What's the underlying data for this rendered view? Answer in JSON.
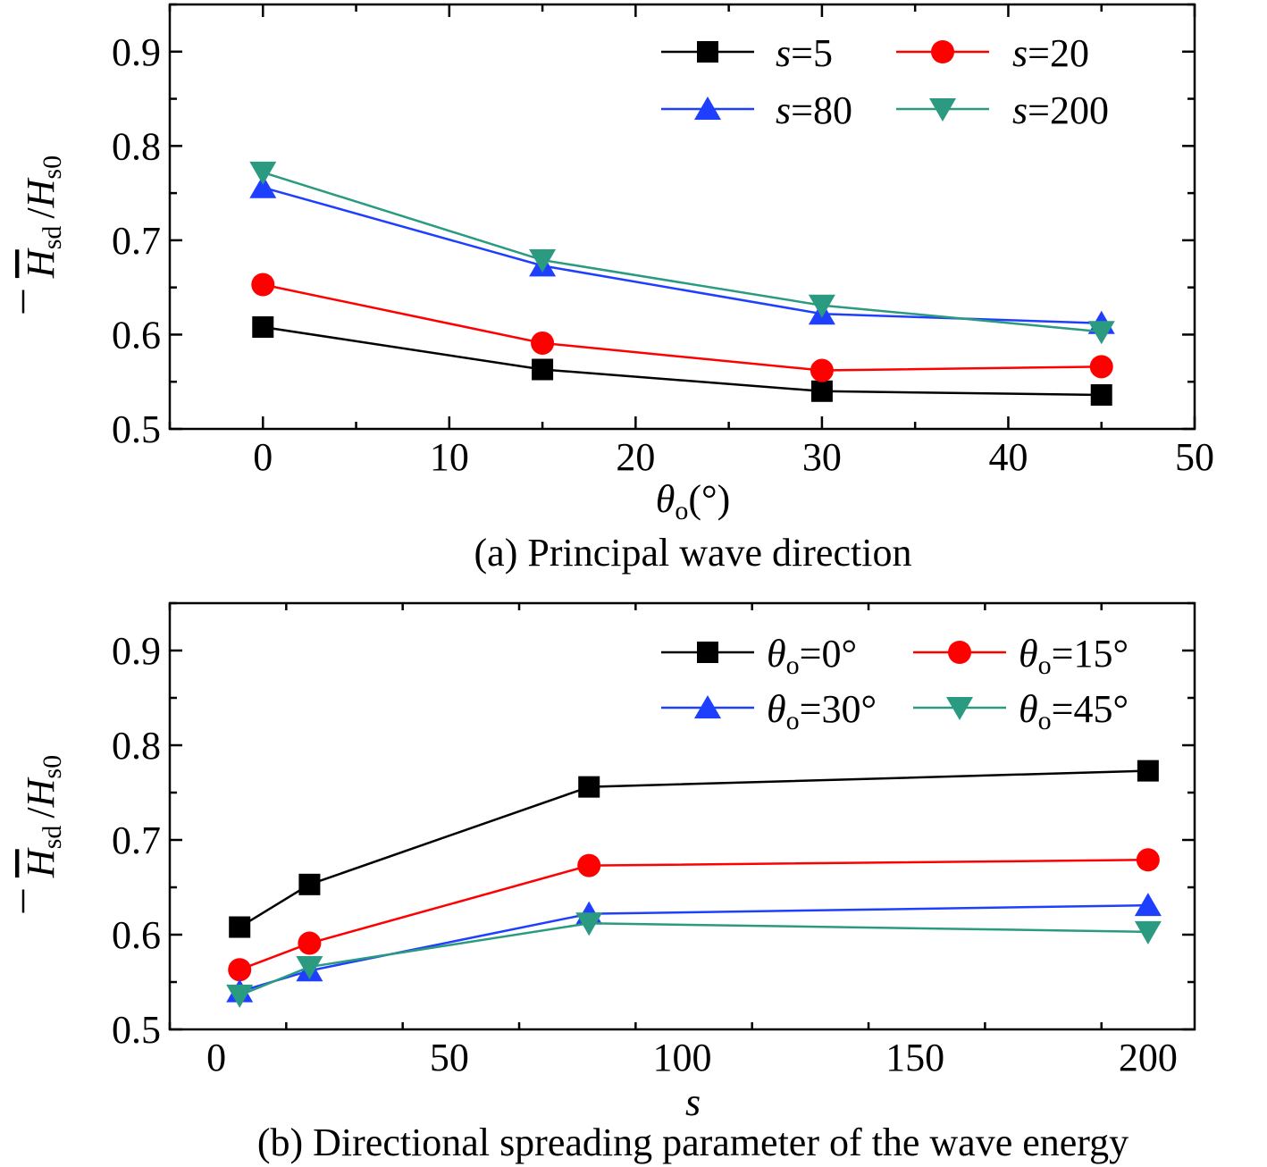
{
  "chart_data": [
    {
      "type": "line",
      "caption": "(a) Principal wave direction",
      "xlabel": {
        "symbol": "θ",
        "subscript": "o",
        "unit": "(°)"
      },
      "ylabel": {
        "symbol_a": "H",
        "subscript_a": "sd",
        "slash": "/",
        "symbol_b": "H",
        "subscript_b": "s0"
      },
      "xlim": [
        -5,
        50
      ],
      "ylim": [
        0.5,
        0.95
      ],
      "xticks": [
        0,
        10,
        20,
        30,
        40,
        50
      ],
      "yticks": [
        0.5,
        0.6,
        0.7,
        0.8,
        0.9
      ],
      "x": [
        0,
        15,
        30,
        45
      ],
      "legend_position": "top-right",
      "series": [
        {
          "name": "s=5",
          "prefix": "s",
          "suffix": "=5",
          "color": "#000000",
          "marker": "square",
          "values": [
            0.608,
            0.563,
            0.54,
            0.536
          ]
        },
        {
          "name": "s=20",
          "prefix": "s",
          "suffix": "=20",
          "color": "#ff0000",
          "marker": "circle",
          "values": [
            0.653,
            0.591,
            0.562,
            0.566
          ]
        },
        {
          "name": "s=80",
          "prefix": "s",
          "suffix": "=80",
          "color": "#1f3fff",
          "marker": "triangle-up",
          "values": [
            0.756,
            0.673,
            0.622,
            0.612
          ]
        },
        {
          "name": "s=200",
          "prefix": "s",
          "suffix": "=200",
          "color": "#2a9a80",
          "marker": "triangle-down",
          "values": [
            0.772,
            0.679,
            0.631,
            0.603
          ]
        }
      ]
    },
    {
      "type": "line",
      "caption": "(b) Directional spreading parameter of the wave energy",
      "xlabel": {
        "symbol": "s",
        "subscript": "",
        "unit": ""
      },
      "ylabel": {
        "symbol_a": "H",
        "subscript_a": "sd",
        "slash": "/",
        "symbol_b": "H",
        "subscript_b": "s0"
      },
      "xlim": [
        -10,
        210
      ],
      "ylim": [
        0.5,
        0.95
      ],
      "xticks": [
        0,
        50,
        100,
        150,
        200
      ],
      "yticks": [
        0.5,
        0.6,
        0.7,
        0.8,
        0.9
      ],
      "x": [
        5,
        20,
        80,
        200
      ],
      "legend_position": "top-right",
      "series": [
        {
          "name": "θo=0°",
          "prefix": "θ",
          "sub": "o",
          "suffix": "=0°",
          "color": "#000000",
          "marker": "square",
          "values": [
            0.608,
            0.653,
            0.756,
            0.773
          ]
        },
        {
          "name": "θo=15°",
          "prefix": "θ",
          "sub": "o",
          "suffix": "=15°",
          "color": "#ff0000",
          "marker": "circle",
          "values": [
            0.563,
            0.591,
            0.673,
            0.679
          ]
        },
        {
          "name": "θo=30°",
          "prefix": "θ",
          "sub": "o",
          "suffix": "=30°",
          "color": "#1f3fff",
          "marker": "triangle-up",
          "values": [
            0.54,
            0.562,
            0.622,
            0.631
          ]
        },
        {
          "name": "θo=45°",
          "prefix": "θ",
          "sub": "o",
          "suffix": "=45°",
          "color": "#2a9a80",
          "marker": "triangle-down",
          "values": [
            0.536,
            0.566,
            0.612,
            0.603
          ]
        }
      ]
    }
  ]
}
